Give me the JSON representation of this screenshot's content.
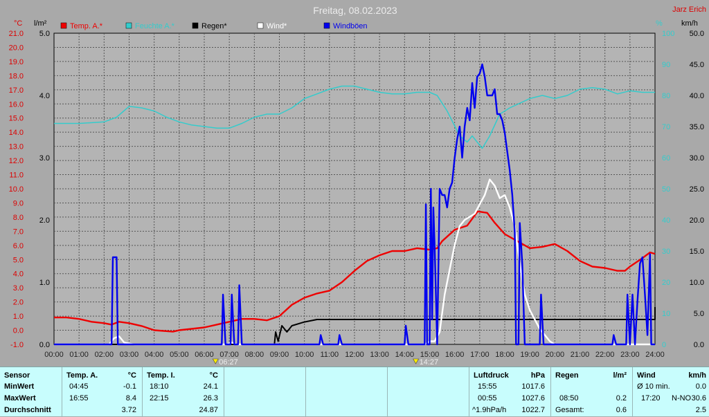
{
  "header": {
    "title": "Freitag, 08.02.2023",
    "author": "Jarz Erich",
    "unit_left1": "°C",
    "unit_left2": "l/m²",
    "unit_right1": "%",
    "unit_right2": "km/h"
  },
  "legend": [
    {
      "label": "Temp. A.*",
      "color": "#ee0000"
    },
    {
      "label": "Feuchte A.*",
      "color": "#33cccc"
    },
    {
      "label": "Regen*",
      "color": "#000000"
    },
    {
      "label": "Wind*",
      "color": "#ffffff"
    },
    {
      "label": "Windböen",
      "color": "#0000ee"
    }
  ],
  "sun": {
    "rise": "06:27",
    "set": "14:27"
  },
  "chart_data": {
    "type": "line",
    "title": "Freitag, 08.02.2023",
    "x_range_hours": [
      0,
      24
    ],
    "x_ticks": [
      "00:00",
      "01:00",
      "02:00",
      "03:00",
      "04:00",
      "05:00",
      "06:00",
      "07:00",
      "08:00",
      "09:00",
      "10:00",
      "11:00",
      "12:00",
      "13:00",
      "14:00",
      "15:00",
      "16:00",
      "17:00",
      "18:00",
      "19:00",
      "20:00",
      "21:00",
      "22:00",
      "23:00",
      "24:00"
    ],
    "axes": {
      "temp": {
        "unit": "°C",
        "range": [
          -1,
          21
        ],
        "ticks": [
          "21.0",
          "20.0",
          "19.0",
          "18.0",
          "17.0",
          "16.0",
          "15.0",
          "14.0",
          "13.0",
          "12.0",
          "11.0",
          "10.0",
          "9.0",
          "8.0",
          "7.0",
          "6.0",
          "5.0",
          "4.0",
          "3.0",
          "2.0",
          "1.0",
          "0.0",
          "-1.0"
        ]
      },
      "rain": {
        "unit": "l/m²",
        "range": [
          0,
          5
        ],
        "ticks": [
          "5.0",
          "4.0",
          "3.0",
          "2.0",
          "1.0",
          "0.0"
        ]
      },
      "humidity": {
        "unit": "%",
        "range": [
          0,
          100
        ],
        "ticks": [
          "100",
          "90",
          "80",
          "70",
          "60",
          "50",
          "40",
          "30",
          "20",
          "10",
          "0"
        ]
      },
      "wind": {
        "unit": "km/h",
        "range": [
          0,
          50
        ],
        "ticks": [
          "50.0",
          "45.0",
          "40.0",
          "35.0",
          "30.0",
          "25.0",
          "20.0",
          "15.0",
          "10.0",
          "5.0",
          "0.0"
        ]
      }
    },
    "grid": true,
    "series": [
      {
        "name": "Temp. A.*",
        "axis": "temp",
        "color": "#ee0000",
        "points": [
          [
            0,
            0.9
          ],
          [
            0.5,
            0.9
          ],
          [
            1,
            0.8
          ],
          [
            1.5,
            0.6
          ],
          [
            2,
            0.5
          ],
          [
            2.3,
            0.4
          ],
          [
            2.6,
            0.6
          ],
          [
            3,
            0.5
          ],
          [
            3.5,
            0.3
          ],
          [
            4,
            0.0
          ],
          [
            4.75,
            -0.1
          ],
          [
            5,
            0.0
          ],
          [
            5.5,
            0.1
          ],
          [
            6,
            0.2
          ],
          [
            6.5,
            0.4
          ],
          [
            7,
            0.6
          ],
          [
            7.5,
            0.8
          ],
          [
            8,
            0.8
          ],
          [
            8.5,
            0.7
          ],
          [
            9,
            1.0
          ],
          [
            9.5,
            1.8
          ],
          [
            10,
            2.3
          ],
          [
            10.5,
            2.6
          ],
          [
            11,
            2.8
          ],
          [
            11.5,
            3.4
          ],
          [
            12,
            4.2
          ],
          [
            12.5,
            4.9
          ],
          [
            13,
            5.3
          ],
          [
            13.5,
            5.6
          ],
          [
            14,
            5.6
          ],
          [
            14.5,
            5.8
          ],
          [
            15,
            5.7
          ],
          [
            15.3,
            5.8
          ],
          [
            15.5,
            6.3
          ],
          [
            16,
            7.1
          ],
          [
            16.5,
            7.4
          ],
          [
            16.92,
            8.4
          ],
          [
            17.3,
            8.3
          ],
          [
            17.6,
            7.6
          ],
          [
            18,
            6.8
          ],
          [
            18.5,
            6.3
          ],
          [
            19,
            5.8
          ],
          [
            19.5,
            5.9
          ],
          [
            20,
            6.1
          ],
          [
            20.5,
            5.6
          ],
          [
            21,
            4.9
          ],
          [
            21.5,
            4.5
          ],
          [
            22,
            4.4
          ],
          [
            22.5,
            4.2
          ],
          [
            22.8,
            4.2
          ],
          [
            23,
            4.5
          ],
          [
            23.5,
            5.1
          ],
          [
            23.8,
            5.5
          ],
          [
            24,
            5.4
          ]
        ]
      },
      {
        "name": "Feuchte A.*",
        "axis": "humidity",
        "color": "#33cccc",
        "points": [
          [
            0,
            71
          ],
          [
            1,
            71
          ],
          [
            2,
            71.5
          ],
          [
            2.5,
            73
          ],
          [
            3,
            76.5
          ],
          [
            3.5,
            76
          ],
          [
            4,
            75
          ],
          [
            4.5,
            73
          ],
          [
            5,
            71.5
          ],
          [
            5.5,
            70.5
          ],
          [
            6,
            70
          ],
          [
            6.5,
            69.5
          ],
          [
            7,
            69.5
          ],
          [
            7.5,
            71
          ],
          [
            8,
            73
          ],
          [
            8.5,
            74
          ],
          [
            9,
            74
          ],
          [
            9.5,
            76
          ],
          [
            10,
            79
          ],
          [
            10.5,
            80.5
          ],
          [
            11,
            82
          ],
          [
            11.5,
            83
          ],
          [
            12,
            83
          ],
          [
            12.5,
            82
          ],
          [
            13,
            81
          ],
          [
            13.5,
            80.5
          ],
          [
            14,
            80.5
          ],
          [
            14.5,
            81
          ],
          [
            15,
            81
          ],
          [
            15.3,
            80
          ],
          [
            15.7,
            75
          ],
          [
            16.2,
            67
          ],
          [
            16.5,
            65
          ],
          [
            16.7,
            67
          ],
          [
            16.9,
            65
          ],
          [
            17.1,
            63
          ],
          [
            17.4,
            67
          ],
          [
            17.8,
            74
          ],
          [
            18.2,
            76
          ],
          [
            18.6,
            77.5
          ],
          [
            19,
            79
          ],
          [
            19.5,
            80
          ],
          [
            20,
            79
          ],
          [
            20.5,
            80
          ],
          [
            21,
            82
          ],
          [
            21.5,
            82.5
          ],
          [
            22,
            82
          ],
          [
            22.5,
            80.5
          ],
          [
            23,
            81.5
          ],
          [
            23.5,
            81
          ],
          [
            24,
            81
          ]
        ]
      },
      {
        "name": "Regen*",
        "axis": "rain",
        "color": "#000000",
        "points": [
          [
            0,
            0
          ],
          [
            8.8,
            0
          ],
          [
            8.85,
            0.2
          ],
          [
            8.95,
            0.05
          ],
          [
            9.1,
            0.3
          ],
          [
            9.3,
            0.2
          ],
          [
            9.5,
            0.3
          ],
          [
            10,
            0.36
          ],
          [
            10.5,
            0.4
          ],
          [
            11,
            0.4
          ],
          [
            24,
            0.4
          ],
          [
            24,
            0.6
          ]
        ]
      },
      {
        "name": "Wind*",
        "axis": "wind",
        "color": "#ffffff",
        "points": [
          [
            0,
            0
          ],
          [
            2.2,
            0
          ],
          [
            2.4,
            1
          ],
          [
            2.6,
            1.3
          ],
          [
            2.8,
            0.3
          ],
          [
            3.2,
            0
          ],
          [
            6.9,
            0
          ],
          [
            7.1,
            0.3
          ],
          [
            7.3,
            0
          ],
          [
            14.8,
            0
          ],
          [
            15,
            0.5
          ],
          [
            15.2,
            0.5
          ],
          [
            15.4,
            2
          ],
          [
            15.6,
            8
          ],
          [
            15.8,
            12
          ],
          [
            16,
            16
          ],
          [
            16.2,
            19
          ],
          [
            16.4,
            20
          ],
          [
            16.6,
            20.5
          ],
          [
            16.8,
            21
          ],
          [
            17,
            22.5
          ],
          [
            17.2,
            24
          ],
          [
            17.4,
            26.5
          ],
          [
            17.6,
            25.5
          ],
          [
            17.8,
            23.5
          ],
          [
            18,
            24
          ],
          [
            18.2,
            22
          ],
          [
            18.4,
            19
          ],
          [
            18.6,
            13
          ],
          [
            18.8,
            8
          ],
          [
            19,
            5.5
          ],
          [
            19.2,
            4
          ],
          [
            19.4,
            2.5
          ],
          [
            19.6,
            1.5
          ],
          [
            19.8,
            0.5
          ],
          [
            20,
            0
          ],
          [
            24,
            0
          ]
        ]
      },
      {
        "name": "Windböen",
        "axis": "wind",
        "color": "#0000ee",
        "points": [
          [
            0,
            0
          ],
          [
            2.3,
            0
          ],
          [
            2.35,
            14
          ],
          [
            2.5,
            14
          ],
          [
            2.55,
            0
          ],
          [
            6.7,
            0
          ],
          [
            6.75,
            8
          ],
          [
            6.85,
            0
          ],
          [
            7.05,
            0
          ],
          [
            7.1,
            8
          ],
          [
            7.2,
            0
          ],
          [
            7.35,
            0
          ],
          [
            7.4,
            9.5
          ],
          [
            7.5,
            0
          ],
          [
            10.6,
            0
          ],
          [
            10.65,
            1.5
          ],
          [
            10.75,
            0
          ],
          [
            11.35,
            0
          ],
          [
            11.4,
            1.5
          ],
          [
            11.5,
            0
          ],
          [
            14,
            0
          ],
          [
            14.05,
            3
          ],
          [
            14.15,
            0
          ],
          [
            14.8,
            0
          ],
          [
            14.85,
            22.5
          ],
          [
            14.9,
            0
          ],
          [
            15.0,
            0
          ],
          [
            15.05,
            25
          ],
          [
            15.1,
            4
          ],
          [
            15.15,
            22
          ],
          [
            15.2,
            16
          ],
          [
            15.3,
            0
          ],
          [
            15.4,
            25
          ],
          [
            15.5,
            24
          ],
          [
            15.6,
            24
          ],
          [
            15.7,
            22
          ],
          [
            15.8,
            25
          ],
          [
            15.9,
            26
          ],
          [
            16,
            30
          ],
          [
            16.1,
            33
          ],
          [
            16.2,
            35
          ],
          [
            16.3,
            30
          ],
          [
            16.4,
            35
          ],
          [
            16.5,
            38
          ],
          [
            16.6,
            36
          ],
          [
            16.7,
            42
          ],
          [
            16.8,
            38
          ],
          [
            16.9,
            43
          ],
          [
            17,
            43.5
          ],
          [
            17.1,
            45
          ],
          [
            17.2,
            43
          ],
          [
            17.3,
            40
          ],
          [
            17.4,
            40
          ],
          [
            17.5,
            40
          ],
          [
            17.6,
            41
          ],
          [
            17.7,
            37
          ],
          [
            17.8,
            37
          ],
          [
            17.9,
            36
          ],
          [
            18,
            34
          ],
          [
            18.1,
            31
          ],
          [
            18.2,
            28
          ],
          [
            18.3,
            24
          ],
          [
            18.4,
            18
          ],
          [
            18.45,
            0
          ],
          [
            18.55,
            0
          ],
          [
            18.6,
            19.5
          ],
          [
            18.7,
            13
          ],
          [
            18.8,
            0
          ],
          [
            19.4,
            0
          ],
          [
            19.45,
            8
          ],
          [
            19.55,
            0
          ],
          [
            22.3,
            0
          ],
          [
            22.35,
            1.5
          ],
          [
            22.45,
            0
          ],
          [
            22.85,
            0
          ],
          [
            22.9,
            8
          ],
          [
            23.0,
            0
          ],
          [
            23.1,
            8
          ],
          [
            23.2,
            0
          ],
          [
            23.3,
            7
          ],
          [
            23.4,
            13
          ],
          [
            23.5,
            14
          ],
          [
            23.6,
            8
          ],
          [
            23.7,
            1.5
          ],
          [
            23.8,
            14.5
          ],
          [
            23.85,
            0
          ],
          [
            24,
            0
          ]
        ]
      }
    ]
  },
  "stats": {
    "sensor": {
      "header": "Sensor",
      "rows": [
        "MinWert",
        "MaxWert",
        "Durchschnitt"
      ]
    },
    "temp_a": {
      "header": "Temp. A.",
      "unit": "°C",
      "rows": [
        [
          "04:45",
          "-0.1"
        ],
        [
          "16:55",
          "8.4"
        ],
        [
          "",
          "3.72"
        ]
      ]
    },
    "temp_i": {
      "header": "Temp. I.",
      "unit": "°C",
      "rows": [
        [
          "18:10",
          "24.1"
        ],
        [
          "22:15",
          "26.3"
        ],
        [
          "",
          "24.87"
        ]
      ]
    },
    "pressure": {
      "header": "Luftdruck",
      "unit": "hPa",
      "rows": [
        [
          "15:55",
          "1017.6"
        ],
        [
          "00:55",
          "1027.6"
        ],
        [
          "^1.9hPa/h",
          "1022.7"
        ]
      ]
    },
    "rain": {
      "header": "Regen",
      "unit": "l/m²",
      "rows": [
        [
          "",
          ""
        ],
        [
          "08:50",
          "0.2"
        ],
        [
          "Gesamt:",
          "0.6"
        ]
      ]
    },
    "wind": {
      "header": "Wind",
      "unit": "km/h",
      "rows": [
        [
          "Ø 10 min.",
          "",
          "0.0"
        ],
        [
          "17:20",
          "N-NO",
          "30.6"
        ],
        [
          "",
          "",
          "2.5"
        ]
      ]
    }
  }
}
